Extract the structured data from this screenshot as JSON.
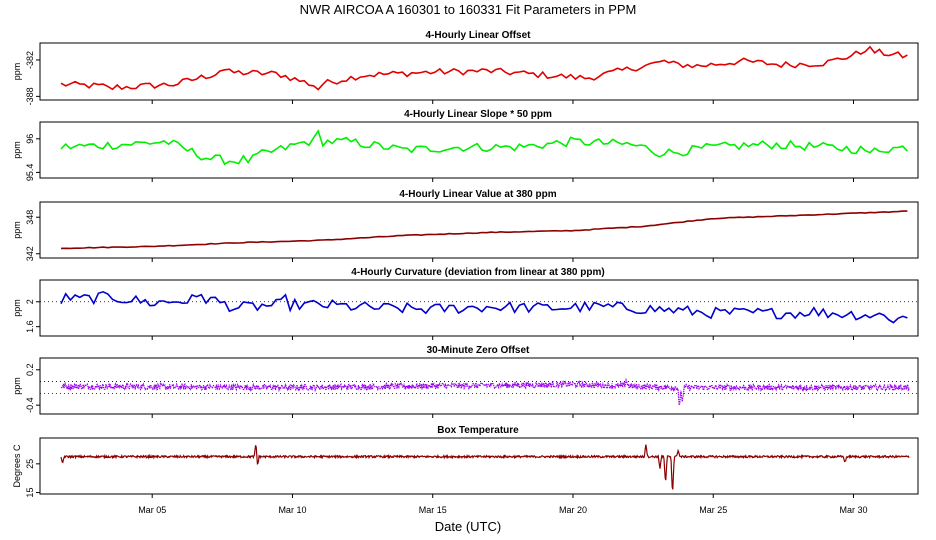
{
  "figure": {
    "title": "NWR   AIRCOA A   160301 to 160331   Fit Parameters in PPM",
    "xlabel": "Date (UTC)"
  },
  "chart_data": [
    {
      "type": "line",
      "title": "4-Hourly Linear Offset",
      "ylabel": "ppm",
      "color": "#e00000",
      "yticks": [
        -382,
        -388
      ],
      "ylim": [
        -388.6,
        -379.2
      ],
      "xlim": [
        1.0,
        32.3
      ],
      "xticks": [
        5,
        10,
        15,
        20,
        25,
        30
      ],
      "xticklabels": [
        "Mar 05",
        "Mar 10",
        "Mar 15",
        "Mar 20",
        "Mar 25",
        "Mar 30"
      ],
      "x_start": 1.75,
      "x_step": 0.1667,
      "trend": [
        [
          1.75,
          -386.0
        ],
        [
          4,
          -386.5
        ],
        [
          5.8,
          -386.0
        ],
        [
          7.5,
          -384.0
        ],
        [
          9.5,
          -384.3
        ],
        [
          10.8,
          -386.2
        ],
        [
          12.5,
          -384.5
        ],
        [
          15,
          -384.0
        ],
        [
          17,
          -383.8
        ],
        [
          19,
          -384.5
        ],
        [
          20.5,
          -385.0
        ],
        [
          23,
          -382.5
        ],
        [
          24.5,
          -383.0
        ],
        [
          26,
          -382.2
        ],
        [
          27.5,
          -382.8
        ],
        [
          29,
          -382.5
        ],
        [
          30.5,
          -380.5
        ],
        [
          32,
          -381.5
        ]
      ],
      "noise": 0.55,
      "spikes": [
        [
          3.5,
          -0.8
        ],
        [
          7.5,
          1.3
        ],
        [
          10.9,
          -0.8
        ],
        [
          23.2,
          1.0
        ],
        [
          30.5,
          1.2
        ]
      ],
      "mode": "line"
    },
    {
      "type": "line",
      "title": "4-Hourly Linear Slope * 50 ppm",
      "ylabel": "ppm",
      "color": "#00ee00",
      "yticks": [
        96.0,
        95.4
      ],
      "ylim": [
        95.3,
        96.3
      ],
      "xlim": [
        1.0,
        32.3
      ],
      "x_start": 1.75,
      "x_step": 0.1667,
      "trend": [
        [
          1.75,
          95.85
        ],
        [
          4,
          95.9
        ],
        [
          5.5,
          95.95
        ],
        [
          7,
          95.65
        ],
        [
          8,
          95.6
        ],
        [
          9.5,
          95.8
        ],
        [
          10.5,
          95.95
        ],
        [
          12,
          95.95
        ],
        [
          14,
          95.8
        ],
        [
          16,
          95.85
        ],
        [
          18,
          95.85
        ],
        [
          20,
          95.95
        ],
        [
          22,
          95.9
        ],
        [
          23.5,
          95.75
        ],
        [
          25,
          95.85
        ],
        [
          27,
          95.9
        ],
        [
          29,
          95.85
        ],
        [
          30.5,
          95.8
        ],
        [
          32,
          95.85
        ]
      ],
      "noise": 0.08,
      "spikes": [
        [
          8.5,
          -0.15
        ],
        [
          10.9,
          0.18
        ],
        [
          23.0,
          -0.15
        ],
        [
          30.6,
          -0.12
        ]
      ],
      "mode": "line"
    },
    {
      "type": "line",
      "title": "4-Hourly Linear Value at 380 ppm",
      "ylabel": "ppm",
      "color": "#8b0000",
      "yticks": [
        348,
        342
      ],
      "ylim": [
        341.3,
        350.5
      ],
      "xlim": [
        1.0,
        32.3
      ],
      "x_start": 1.75,
      "x_step": 0.1667,
      "trend": [
        [
          1.75,
          342.9
        ],
        [
          5,
          343.2
        ],
        [
          8,
          343.8
        ],
        [
          11,
          344.2
        ],
        [
          14,
          345.0
        ],
        [
          17,
          345.5
        ],
        [
          20,
          345.8
        ],
        [
          22.5,
          346.5
        ],
        [
          25,
          347.8
        ],
        [
          28,
          348.3
        ],
        [
          32,
          349.0
        ]
      ],
      "noise": 0.06,
      "spikes": [],
      "mode": "line"
    },
    {
      "type": "line",
      "title": "4-Hourly Curvature (deviation from linear at 380 ppm)",
      "ylabel": "ppm",
      "color": "#0000cc",
      "refline": 2.0,
      "yticks": [
        2.0,
        1.6
      ],
      "ylim": [
        1.45,
        2.35
      ],
      "xlim": [
        1.0,
        32.3
      ],
      "x_start": 1.75,
      "x_step": 0.1667,
      "trend": [
        [
          1.75,
          2.02
        ],
        [
          3.5,
          2.08
        ],
        [
          5,
          1.98
        ],
        [
          7,
          2.05
        ],
        [
          8,
          1.9
        ],
        [
          9.5,
          1.95
        ],
        [
          11,
          1.95
        ],
        [
          13,
          1.9
        ],
        [
          15,
          1.88
        ],
        [
          17,
          1.92
        ],
        [
          19,
          1.9
        ],
        [
          21,
          1.92
        ],
        [
          23,
          1.88
        ],
        [
          25,
          1.82
        ],
        [
          27,
          1.82
        ],
        [
          29,
          1.82
        ],
        [
          31,
          1.78
        ],
        [
          32,
          1.74
        ]
      ],
      "noise": 0.09,
      "spikes": [
        [
          2.0,
          0.12
        ],
        [
          6.7,
          0.18
        ],
        [
          9.7,
          0.15
        ],
        [
          28.5,
          0.12
        ],
        [
          31.5,
          -0.15
        ]
      ],
      "mode": "line"
    },
    {
      "type": "scatter",
      "title": "30-Minute Zero Offset",
      "ylabel": "ppm",
      "color": "#9900ee",
      "reflines": [
        0.0,
        -0.2
      ],
      "yticks": [
        0.2,
        -0.4
      ],
      "ylim": [
        -0.55,
        0.4
      ],
      "xlim": [
        1.0,
        32.3
      ],
      "x_start": 1.75,
      "x_step": 0.02083,
      "trend": [
        [
          1.75,
          -0.08
        ],
        [
          10,
          -0.1
        ],
        [
          20,
          -0.05
        ],
        [
          23.5,
          -0.1
        ],
        [
          32,
          -0.1
        ]
      ],
      "noise": 0.05,
      "spikes": [
        [
          23.8,
          -0.35
        ],
        [
          23.9,
          -0.25
        ],
        [
          21.9,
          0.12
        ]
      ],
      "mode": "dots"
    },
    {
      "type": "line",
      "title": "Box Temperature",
      "ylabel": "Degrees C",
      "color": "#8b0000",
      "yticks": [
        25,
        15
      ],
      "ylim": [
        14.5,
        34
      ],
      "xlim": [
        1.0,
        32.3
      ],
      "x_start": 1.75,
      "x_step": 0.02083,
      "trend": [
        [
          1.75,
          27.5
        ],
        [
          32,
          27.5
        ]
      ],
      "noise": 0.35,
      "spikes": [
        [
          1.8,
          -2.5
        ],
        [
          8.7,
          5.0
        ],
        [
          8.75,
          -3.5
        ],
        [
          22.6,
          4.5
        ],
        [
          23.1,
          -4.0
        ],
        [
          23.3,
          -9.5
        ],
        [
          23.55,
          -13.0
        ],
        [
          23.75,
          2.5
        ],
        [
          29.7,
          -2.0
        ]
      ],
      "mode": "line"
    }
  ]
}
